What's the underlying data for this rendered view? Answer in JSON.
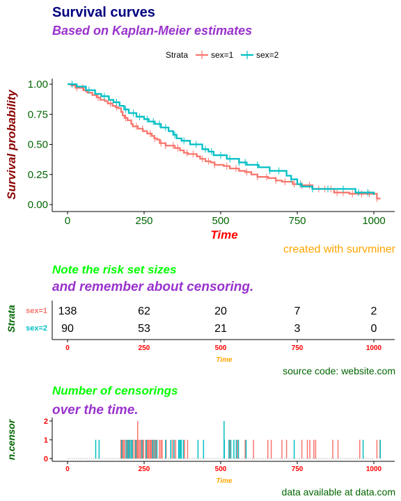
{
  "header": {
    "title": "Survival curves",
    "subtitle": "Based on Kaplan-Meier estimates"
  },
  "colors": {
    "strata1": "#F8766D",
    "strata2": "#00BFC4",
    "title": "#000080",
    "subtitle": "#9932CC",
    "axis_value": "#006400",
    "ylabel": "#8B0000",
    "xlabel": "#FF0000",
    "caption": "#FFA500",
    "risk_title": "#00FF00",
    "risk_tick": "#FF0000",
    "risk_xlabel": "#FFA500",
    "dark_green": "#006400"
  },
  "chart_data": [
    {
      "type": "line",
      "subtype": "survival-step",
      "title": "Survival curves",
      "subtitle": "Based on Kaplan-Meier estimates",
      "xlabel": "Time",
      "ylabel": "Survival probability",
      "caption": "created with survminer",
      "xlim": [
        0,
        1022
      ],
      "ylim": [
        0,
        1
      ],
      "x_ticks": [
        "0",
        "250",
        "500",
        "750",
        "1000"
      ],
      "y_ticks": [
        "0.00",
        "0.25",
        "0.50",
        "0.75",
        "1.00"
      ],
      "legend": {
        "title": "Strata",
        "position": "top",
        "entries": [
          "sex=1",
          "sex=2"
        ]
      },
      "series": [
        {
          "name": "sex=1",
          "points": [
            [
              0,
              1.0
            ],
            [
              12,
              0.99
            ],
            [
              26,
              0.97
            ],
            [
              53,
              0.95
            ],
            [
              60,
              0.94
            ],
            [
              65,
              0.93
            ],
            [
              81,
              0.91
            ],
            [
              95,
              0.89
            ],
            [
              107,
              0.87
            ],
            [
              122,
              0.86
            ],
            [
              131,
              0.84
            ],
            [
              147,
              0.82
            ],
            [
              156,
              0.81
            ],
            [
              165,
              0.8
            ],
            [
              175,
              0.77
            ],
            [
              180,
              0.74
            ],
            [
              186,
              0.72
            ],
            [
              196,
              0.7
            ],
            [
              208,
              0.67
            ],
            [
              213,
              0.65
            ],
            [
              230,
              0.63
            ],
            [
              246,
              0.61
            ],
            [
              260,
              0.59
            ],
            [
              275,
              0.57
            ],
            [
              283,
              0.55
            ],
            [
              292,
              0.54
            ],
            [
              301,
              0.51
            ],
            [
              320,
              0.49
            ],
            [
              350,
              0.47
            ],
            [
              367,
              0.45
            ],
            [
              380,
              0.43
            ],
            [
              393,
              0.42
            ],
            [
              422,
              0.4
            ],
            [
              433,
              0.38
            ],
            [
              450,
              0.36
            ],
            [
              467,
              0.35
            ],
            [
              480,
              0.33
            ],
            [
              510,
              0.32
            ],
            [
              530,
              0.3
            ],
            [
              560,
              0.28
            ],
            [
              580,
              0.27
            ],
            [
              600,
              0.25
            ],
            [
              620,
              0.23
            ],
            [
              655,
              0.22
            ],
            [
              680,
              0.2
            ],
            [
              700,
              0.19
            ],
            [
              735,
              0.17
            ],
            [
              760,
              0.16
            ],
            [
              800,
              0.13
            ],
            [
              870,
              0.1
            ],
            [
              920,
              0.09
            ],
            [
              1010,
              0.05
            ],
            [
              1022,
              0.05
            ]
          ],
          "censor_times": [
            30,
            50,
            100,
            140,
            160,
            190,
            225,
            245,
            270,
            285,
            305,
            320,
            345,
            360,
            390,
            410,
            440,
            460,
            480,
            520,
            550,
            585,
            620,
            650,
            680,
            710,
            740,
            765,
            790,
            820,
            840,
            860,
            880,
            900,
            930,
            960,
            985,
            1010
          ]
        },
        {
          "name": "sex=2",
          "points": [
            [
              0,
              1.0
            ],
            [
              30,
              0.98
            ],
            [
              60,
              0.95
            ],
            [
              90,
              0.92
            ],
            [
              110,
              0.9
            ],
            [
              135,
              0.87
            ],
            [
              150,
              0.85
            ],
            [
              170,
              0.82
            ],
            [
              185,
              0.79
            ],
            [
              200,
              0.76
            ],
            [
              225,
              0.73
            ],
            [
              250,
              0.71
            ],
            [
              265,
              0.69
            ],
            [
              285,
              0.67
            ],
            [
              305,
              0.64
            ],
            [
              330,
              0.61
            ],
            [
              345,
              0.58
            ],
            [
              356,
              0.55
            ],
            [
              372,
              0.53
            ],
            [
              400,
              0.5
            ],
            [
              440,
              0.46
            ],
            [
              460,
              0.44
            ],
            [
              477,
              0.41
            ],
            [
              520,
              0.38
            ],
            [
              560,
              0.35
            ],
            [
              585,
              0.33
            ],
            [
              624,
              0.31
            ],
            [
              660,
              0.28
            ],
            [
              715,
              0.24
            ],
            [
              730,
              0.21
            ],
            [
              750,
              0.17
            ],
            [
              765,
              0.15
            ],
            [
              799,
              0.13
            ],
            [
              940,
              0.1
            ],
            [
              1000,
              0.08
            ]
          ],
          "censor_times": [
            15,
            70,
            120,
            160,
            190,
            215,
            235,
            260,
            280,
            300,
            320,
            350,
            380,
            420,
            450,
            470,
            500,
            530,
            560,
            580,
            620,
            660,
            690,
            730,
            760,
            800,
            850,
            900,
            950,
            980
          ]
        }
      ]
    },
    {
      "type": "table",
      "title": "Note the risk set sizes",
      "subtitle": "and remember about censoring.",
      "xlabel": "Time",
      "ylabel": "Strata",
      "caption": "source code: website.com",
      "x_ticks": [
        "0",
        "250",
        "500",
        "750",
        "1000"
      ],
      "rows": [
        {
          "name": "sex=1",
          "values": [
            "138",
            "62",
            "20",
            "7",
            "2"
          ]
        },
        {
          "name": "sex=2",
          "values": [
            "90",
            "53",
            "21",
            "3",
            "0"
          ]
        }
      ]
    },
    {
      "type": "bar",
      "title": "Number of censorings",
      "subtitle": "over the time.",
      "xlabel": "Time",
      "ylabel": "n.censor",
      "caption": "data available at data.com",
      "x_ticks": [
        "0",
        "250",
        "500",
        "750",
        "1000"
      ],
      "y_ticks": [
        "0",
        "1",
        "2"
      ],
      "ylim": [
        0,
        2
      ],
      "series": [
        {
          "name": "sex=1",
          "x": [
            174,
            176,
            180,
            182,
            186,
            194,
            198,
            203,
            213,
            214,
            220,
            225,
            226,
            229,
            230,
            234,
            238,
            242,
            245,
            248,
            255,
            260,
            262,
            265,
            269,
            272,
            275,
            280,
            284,
            288,
            291,
            300,
            305,
            309,
            322,
            342,
            348,
            353,
            382,
            392,
            529,
            531,
            555,
            580,
            607,
            654,
            665,
            700,
            715,
            765,
            783,
            791,
            804,
            810,
            866,
            883,
            954,
            1010,
            1020
          ],
          "values": [
            1,
            1,
            1,
            1,
            1,
            1,
            1,
            1,
            1,
            1,
            1,
            1,
            1,
            2,
            1,
            1,
            1,
            1,
            1,
            1,
            1,
            1,
            1,
            1,
            1,
            1,
            1,
            1,
            1,
            1,
            1,
            1,
            1,
            1,
            1,
            1,
            1,
            1,
            1,
            1,
            1,
            1,
            1,
            1,
            1,
            1,
            1,
            1,
            1,
            1,
            1,
            1,
            1,
            1,
            1,
            1,
            1,
            1,
            1
          ]
        },
        {
          "name": "sex=2",
          "x": [
            92,
            103,
            177,
            191,
            197,
            201,
            207,
            211,
            223,
            243,
            257,
            278,
            285,
            292,
            320,
            337,
            347,
            363,
            365,
            369,
            371,
            378,
            426,
            444,
            511,
            512,
            527,
            533,
            543,
            551,
            558,
            583,
            740,
            965,
            1021
          ],
          "values": [
            1,
            1,
            1,
            1,
            1,
            1,
            1,
            1,
            1,
            1,
            1,
            1,
            1,
            1,
            1,
            1,
            1,
            1,
            1,
            1,
            1,
            1,
            1,
            1,
            2,
            1,
            1,
            1,
            1,
            1,
            1,
            1,
            1,
            1,
            1
          ]
        }
      ]
    }
  ]
}
